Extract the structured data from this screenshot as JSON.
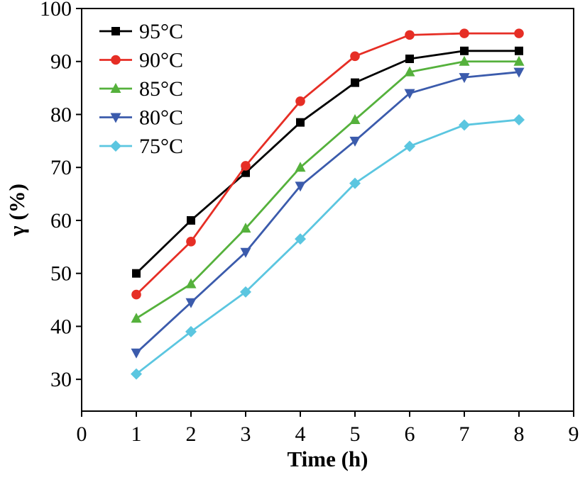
{
  "figure": {
    "background": "#ffffff",
    "axis_color": "#000000"
  },
  "chart_data": {
    "type": "line",
    "title": "",
    "xlabel": "Time (h)",
    "ylabel": "γ (%)",
    "xlim": [
      0,
      9
    ],
    "ylim": [
      24,
      100
    ],
    "xticks": [
      0,
      1,
      2,
      3,
      4,
      5,
      6,
      7,
      8,
      9
    ],
    "yticks": [
      30,
      40,
      50,
      60,
      70,
      80,
      90,
      100
    ],
    "grid": false,
    "legend_position": "top-left",
    "x": [
      1,
      2,
      3,
      4,
      5,
      6,
      7,
      8
    ],
    "series": [
      {
        "name": "95°C",
        "color": "#000000",
        "marker": "square",
        "values": [
          50,
          60,
          69,
          78.5,
          86,
          90.5,
          92,
          92
        ]
      },
      {
        "name": "90°C",
        "color": "#e62e25",
        "marker": "circle",
        "values": [
          46,
          56,
          70.3,
          82.5,
          91,
          95,
          95.3,
          95.3
        ]
      },
      {
        "name": "85°C",
        "color": "#55b13c",
        "marker": "triangle-up",
        "values": [
          41.5,
          48,
          58.5,
          70,
          79,
          88,
          90,
          90
        ]
      },
      {
        "name": "80°C",
        "color": "#3b5bac",
        "marker": "triangle-down",
        "values": [
          35,
          44.5,
          54,
          66.5,
          75,
          84,
          87,
          88
        ]
      },
      {
        "name": "75°C",
        "color": "#5bc6e0",
        "marker": "diamond",
        "values": [
          31,
          39,
          46.5,
          56.5,
          67,
          74,
          78,
          79
        ]
      }
    ]
  }
}
